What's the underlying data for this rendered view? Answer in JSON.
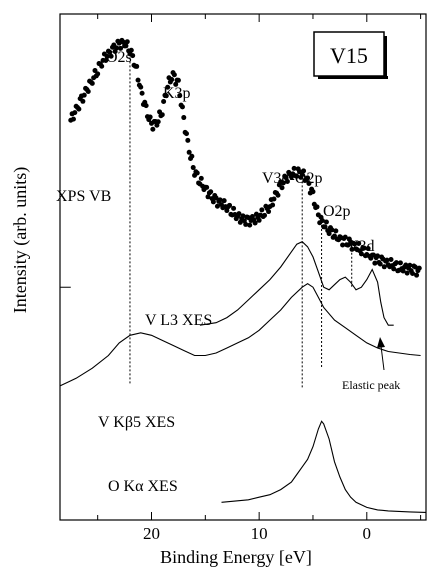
{
  "chart_data": {
    "type": "scatter",
    "xlabel": "Binding Energy [eV]",
    "ylabel": "Intensity (arb. units)",
    "x_reversed": true,
    "xlim": [
      28.5,
      -5.5
    ],
    "ylim": [
      0,
      100
    ],
    "x_ticks": [
      "20",
      "10",
      "0"
    ],
    "x_tick_values": [
      20,
      10,
      0
    ],
    "sample_label": "V15",
    "annotations": {
      "o2s": "O2s",
      "k3p": "K3p",
      "xps_vb": "XPS VB",
      "v3d_o2p": "V3d-O2p",
      "o2p": "O2p",
      "v3d": "V3d",
      "v_l3_xes": "V L3 XES",
      "v_kb5_xes": "V Kβ5 XES",
      "o_ka_xes": "O Kα XES",
      "elastic_peak": "Elastic peak"
    },
    "guide_lines_x": [
      22.0,
      6.0,
      4.2,
      1.4
    ],
    "series": [
      {
        "key": "xps_vb",
        "style": "dots",
        "x": [
          27.5,
          27.0,
          26.5,
          26.0,
          25.5,
          25.0,
          24.5,
          24.0,
          23.5,
          23.0,
          22.5,
          22.0,
          21.5,
          21.0,
          20.5,
          20.0,
          19.5,
          19.0,
          18.5,
          18.0,
          17.5,
          17.0,
          16.5,
          16.0,
          15.5,
          15.0,
          14.5,
          14.0,
          13.5,
          13.0,
          12.5,
          12.0,
          11.5,
          11.0,
          10.5,
          10.0,
          9.5,
          9.0,
          8.5,
          8.0,
          7.5,
          7.0,
          6.5,
          6.0,
          5.5,
          5.0,
          4.5,
          4.0,
          3.5,
          3.0,
          2.5,
          2.0,
          1.5,
          1.0,
          0.5,
          0.0,
          -0.5,
          -1.0,
          -1.5,
          -2.0,
          -2.5,
          -3.0,
          -3.5,
          -4.0,
          -4.5,
          -5.0
        ],
        "y": [
          79.0,
          81.0,
          83.0,
          85.0,
          87.0,
          89.0,
          91.0,
          92.0,
          93.0,
          94.0,
          94.3,
          93.0,
          90.0,
          85.0,
          81.0,
          78.0,
          78.5,
          81.0,
          86.0,
          88.0,
          86.0,
          79.0,
          73.0,
          69.0,
          67.0,
          65.5,
          64.0,
          63.0,
          62.5,
          62.0,
          61.0,
          60.0,
          59.3,
          59.0,
          59.3,
          60.0,
          61.0,
          62.0,
          64.0,
          66.0,
          67.5,
          68.5,
          68.8,
          68.5,
          67.0,
          64.0,
          60.0,
          58.5,
          57.5,
          56.5,
          55.5,
          55.0,
          54.5,
          54.0,
          53.5,
          53.0,
          52.0,
          51.3,
          51.0,
          50.7,
          50.5,
          50.0,
          49.8,
          49.5,
          49.3,
          49.0
        ]
      },
      {
        "key": "v_l3_xes",
        "style": "line",
        "x": [
          15.5,
          14.0,
          13.0,
          12.0,
          11.0,
          10.0,
          9.0,
          8.0,
          7.0,
          6.5,
          6.0,
          5.5,
          5.0,
          4.5,
          4.0,
          3.5,
          3.0,
          2.5,
          2.0,
          1.5,
          1.0,
          0.5,
          0.0,
          -0.5,
          -1.0,
          -1.3,
          -1.6,
          -2.0,
          -2.5
        ],
        "y": [
          38.5,
          39.0,
          40.0,
          41.5,
          43.5,
          45.5,
          47.5,
          50.0,
          53.0,
          54.5,
          55.0,
          54.0,
          52.0,
          49.0,
          46.0,
          45.5,
          46.5,
          47.5,
          48.0,
          47.0,
          45.5,
          46.0,
          47.5,
          49.5,
          47.0,
          43.0,
          40.0,
          38.5,
          38.5
        ]
      },
      {
        "key": "v_kb5_xes",
        "style": "line",
        "x": [
          28.5,
          27.0,
          25.5,
          24.0,
          23.0,
          22.0,
          21.0,
          20.0,
          19.0,
          18.0,
          17.0,
          16.0,
          15.0,
          14.0,
          13.0,
          12.0,
          11.0,
          10.0,
          9.0,
          8.0,
          7.0,
          6.0,
          5.5,
          5.0,
          4.5,
          4.0,
          3.0,
          2.0,
          1.0,
          0.0,
          -1.0,
          -2.0,
          -3.0,
          -4.0,
          -5.0
        ],
        "y": [
          26.5,
          28.0,
          30.0,
          32.5,
          35.0,
          36.5,
          37.0,
          36.5,
          35.5,
          34.5,
          33.5,
          32.5,
          32.5,
          33.0,
          34.0,
          35.0,
          36.0,
          37.5,
          39.5,
          41.5,
          44.0,
          46.0,
          46.7,
          46.0,
          44.0,
          42.0,
          39.5,
          38.0,
          36.5,
          35.0,
          34.0,
          33.3,
          33.0,
          32.7,
          32.5
        ]
      },
      {
        "key": "o_ka_xes",
        "style": "line",
        "x": [
          13.5,
          12.0,
          11.0,
          10.0,
          9.0,
          8.0,
          7.0,
          6.5,
          6.0,
          5.5,
          5.0,
          4.5,
          4.2,
          4.0,
          3.5,
          3.0,
          2.5,
          2.0,
          1.5,
          1.0,
          0.0,
          -1.0,
          -2.0,
          -3.0,
          -4.0,
          -5.5
        ],
        "y": [
          3.5,
          3.8,
          4.0,
          4.5,
          5.0,
          6.0,
          7.5,
          9.0,
          10.5,
          12.0,
          14.5,
          18.0,
          19.5,
          19.0,
          16.0,
          11.5,
          8.5,
          6.0,
          4.5,
          3.5,
          2.5,
          2.0,
          1.8,
          1.7,
          1.6,
          1.5
        ]
      }
    ],
    "baseline_stub": {
      "x": [
        28.5,
        27.5
      ],
      "y": [
        46.0,
        46.0
      ]
    }
  }
}
